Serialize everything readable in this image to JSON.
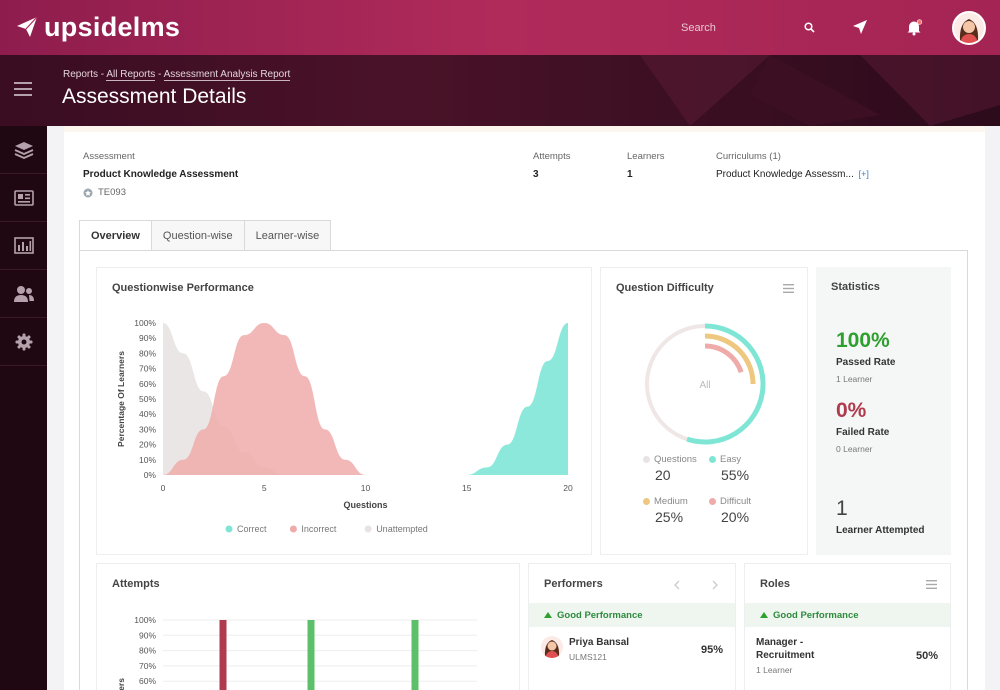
{
  "app": {
    "name": "upsidelms"
  },
  "topbar": {
    "search_placeholder": "Search"
  },
  "header": {
    "breadcrumb": {
      "root": "Reports",
      "sep1": " - ",
      "level1": "All Reports",
      "sep2": " - ",
      "level2": "Assessment Analysis Report"
    },
    "title": "Assessment Details"
  },
  "sidebar": {
    "items": [
      "menu-icon",
      "layers-icon",
      "catalog-icon",
      "reports-icon",
      "users-icon",
      "settings-icon"
    ]
  },
  "summary": {
    "assessment_label": "Assessment",
    "assessment_name": "Product Knowledge Assessment",
    "assessment_code": "TE093",
    "attempts_label": "Attempts",
    "attempts_value": "3",
    "learners_label": "Learners",
    "learners_value": "1",
    "curriculums_label": "Curriculums (1)",
    "curriculums_value": "Product Knowledge Assessm...",
    "curriculums_more": "[+]"
  },
  "tabs": [
    {
      "label": "Overview",
      "active": true
    },
    {
      "label": "Question-wise",
      "active": false
    },
    {
      "label": "Learner-wise",
      "active": false
    }
  ],
  "cards": {
    "questionwise": {
      "title": "Questionwise Performance"
    },
    "difficulty": {
      "title": "Question Difficulty"
    },
    "statistics": {
      "title": "Statistics"
    },
    "attempts": {
      "title": "Attempts"
    },
    "performers": {
      "title": "Performers"
    },
    "roles": {
      "title": "Roles"
    }
  },
  "difficulty_legend": [
    {
      "label": "Questions",
      "value": "20",
      "color": "#e8e3e2"
    },
    {
      "label": "Easy",
      "value": "55%",
      "color": "#7fe6d6"
    },
    {
      "label": "Medium",
      "value": "25%",
      "color": "#eec780"
    },
    {
      "label": "Difficult",
      "value": "20%",
      "color": "#efabaa"
    }
  ],
  "donut_center": "All",
  "statistics": {
    "passed_value": "100%",
    "passed_label": "Passed Rate",
    "passed_sub": "1 Learner",
    "failed_value": "0%",
    "failed_label": "Failed Rate",
    "failed_sub": "0 Learner",
    "attempted_value": "1",
    "attempted_label": "Learner Attempted",
    "passed_color": "#2ea02e",
    "failed_color": "#b03a4e"
  },
  "performers": {
    "section": "Good Performance",
    "name": "Priya Bansal",
    "id": "ULMS121",
    "score": "95%"
  },
  "roles": {
    "section": "Good Performance",
    "role_line1": "Manager -",
    "role_line2": "Recruitment",
    "sub": "1 Learner",
    "score": "50%"
  },
  "chart_data": [
    {
      "type": "area",
      "title": "Questionwise Performance",
      "xlabel": "Questions",
      "ylabel": "Percentage Of Learners",
      "x_ticks": [
        0,
        5,
        10,
        15,
        20
      ],
      "y_ticks": [
        "0%",
        "10%",
        "20%",
        "30%",
        "40%",
        "50%",
        "60%",
        "70%",
        "80%",
        "90%",
        "100%"
      ],
      "ylim": [
        0,
        100
      ],
      "xlim": [
        0,
        20
      ],
      "legend_position": "bottom",
      "series": [
        {
          "name": "Correct",
          "color": "#7fe6d6",
          "x": [
            15,
            16,
            17,
            18,
            19,
            20
          ],
          "y": [
            0,
            5,
            20,
            45,
            75,
            100
          ]
        },
        {
          "name": "Incorrect",
          "color": "#efabaa",
          "x": [
            0,
            1,
            2,
            3,
            4,
            5,
            6,
            7,
            8,
            9,
            10
          ],
          "y": [
            0,
            10,
            30,
            65,
            92,
            100,
            92,
            65,
            30,
            10,
            0
          ]
        },
        {
          "name": "Unattempted",
          "color": "#e8e3e2",
          "x": [
            0,
            1,
            2,
            3,
            4,
            5,
            6
          ],
          "y": [
            100,
            80,
            55,
            32,
            15,
            5,
            0
          ]
        }
      ]
    },
    {
      "type": "pie",
      "title": "Question Difficulty",
      "center_label": "All",
      "slices": [
        {
          "name": "Easy",
          "value": 55,
          "color": "#7fe6d6"
        },
        {
          "name": "Medium",
          "value": 25,
          "color": "#eec780"
        },
        {
          "name": "Difficult",
          "value": 20,
          "color": "#efabaa"
        }
      ],
      "total_questions": 20
    },
    {
      "type": "bar",
      "title": "Attempts",
      "y_ticks": [
        "60%",
        "70%",
        "80%",
        "90%",
        "100%"
      ],
      "ylim": [
        60,
        100
      ],
      "ylabel": "of Learners",
      "series": [
        {
          "values": [
            100
          ],
          "color": "#b03a4e"
        },
        {
          "values": [
            100
          ],
          "color": "#5cc06a"
        },
        {
          "values": [
            100
          ],
          "color": "#5cc06a"
        }
      ]
    }
  ]
}
